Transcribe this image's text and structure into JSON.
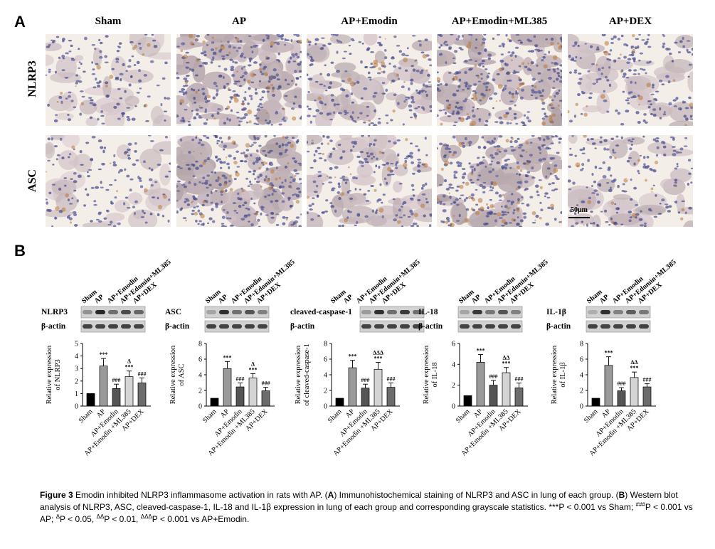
{
  "panel_a": {
    "letter": "A",
    "columns": [
      "Sham",
      "AP",
      "AP+Emodin",
      "AP+Emodin+ML385",
      "AP+DEX"
    ],
    "rows": [
      "NLRP3",
      "ASC"
    ],
    "scale_bar": "50μm"
  },
  "panel_b": {
    "letter": "B",
    "lane_labels": [
      "Sham",
      "AP",
      "AP+Emodin",
      "AP+Edomin+ML385",
      "AP+DEX"
    ],
    "loading_control": "β-actin"
  },
  "chart_data": [
    {
      "type": "bar",
      "protein": "NLRP3",
      "ylabel": "Relative expression of NLRP3",
      "categories": [
        "Sham",
        "AP",
        "AP+Emodin",
        "AP+Emodin +ML385",
        "AP+DEX"
      ],
      "values": [
        1.0,
        3.2,
        1.4,
        2.35,
        1.85
      ],
      "errors": [
        0,
        0.6,
        0.35,
        0.45,
        0.4
      ],
      "ylim": [
        0,
        5
      ],
      "yticks": [
        0,
        1,
        2,
        3,
        4,
        5
      ],
      "annotations": [
        "",
        "***",
        "###",
        "Δ\n***",
        "###"
      ]
    },
    {
      "type": "bar",
      "protein": "ASC",
      "ylabel": "Relative expression of ASC",
      "categories": [
        "Sham",
        "AP",
        "AP+Emodin",
        "AP+Emodin +ML385",
        "AP+DEX"
      ],
      "values": [
        1.0,
        4.8,
        2.45,
        3.6,
        1.95
      ],
      "errors": [
        0,
        0.9,
        0.5,
        0.55,
        0.45
      ],
      "ylim": [
        0,
        8
      ],
      "yticks": [
        0,
        2,
        4,
        6,
        8
      ],
      "annotations": [
        "",
        "***",
        "###",
        "Δ\n***",
        "###"
      ]
    },
    {
      "type": "bar",
      "protein": "cleaved-caspase-1",
      "ylabel": "Relative expression of cleaved-caspase-1",
      "categories": [
        "Sham",
        "AP",
        "AP+Emodin",
        "AP+Emodin +ML385",
        "AP+DEX"
      ],
      "values": [
        1.0,
        4.9,
        2.3,
        4.7,
        2.4
      ],
      "errors": [
        0,
        0.95,
        0.5,
        0.9,
        0.55
      ],
      "ylim": [
        0,
        8
      ],
      "yticks": [
        0,
        2,
        4,
        6,
        8
      ],
      "annotations": [
        "",
        "***",
        "###",
        "ΔΔΔ\n***",
        "###"
      ]
    },
    {
      "type": "bar",
      "protein": "IL-18",
      "ylabel": "Relative expression of IL-18",
      "categories": [
        "Sham",
        "AP",
        "AP+Emodin",
        "AP+Emodin +ML385",
        "AP+DEX"
      ],
      "values": [
        1.0,
        4.2,
        2.0,
        3.2,
        1.75
      ],
      "errors": [
        0,
        0.75,
        0.45,
        0.5,
        0.45
      ],
      "ylim": [
        0,
        6
      ],
      "yticks": [
        0,
        2,
        4,
        6
      ],
      "annotations": [
        "",
        "***",
        "###",
        "ΔΔ\n***",
        "###"
      ]
    },
    {
      "type": "bar",
      "protein": "IL-1β",
      "ylabel": "Relative expression of IL-1β",
      "categories": [
        "Sham",
        "AP",
        "AP+Emodin",
        "AP+Emodin +ML385",
        "AP+DEX"
      ],
      "values": [
        1.0,
        5.2,
        1.95,
        3.65,
        2.45
      ],
      "errors": [
        0,
        1.1,
        0.4,
        0.7,
        0.4
      ],
      "ylim": [
        0,
        8
      ],
      "yticks": [
        0,
        2,
        4,
        6,
        8
      ],
      "annotations": [
        "",
        "***",
        "###",
        "ΔΔ\n***",
        "###"
      ]
    }
  ],
  "caption": {
    "figure_label": "Figure 3",
    "title": "Emodin inhibited NLRP3 inflammasome activation in rats with AP.",
    "part_a_label": "A",
    "part_a_text": "Immunohistochemical staining of NLRP3 and ASC in lung of each group.",
    "part_b_label": "B",
    "part_b_text": "Western blot analysis of NLRP3, ASC, cleaved-caspase-1, IL-18 and IL-1β expression in lung of each group and corresponding grayscale statistics.",
    "sig1_sym": "***",
    "sig1_text": "P < 0.001 vs Sham;",
    "sig2_sym": "###",
    "sig2_text": "P < 0.001 vs AP;",
    "sig3_sym": "Δ",
    "sig3_text": "P < 0.05,",
    "sig4_sym": "ΔΔ",
    "sig4_text": "P < 0.01,",
    "sig5_sym": "ΔΔΔ",
    "sig5_text": "P < 0.001 vs AP+Emodin."
  },
  "colors": {
    "sham": "#000000",
    "ap": "#9a9a9a",
    "emodin": "#555555",
    "ml385": "#d4d4d4",
    "dex": "#6c6c6c"
  }
}
